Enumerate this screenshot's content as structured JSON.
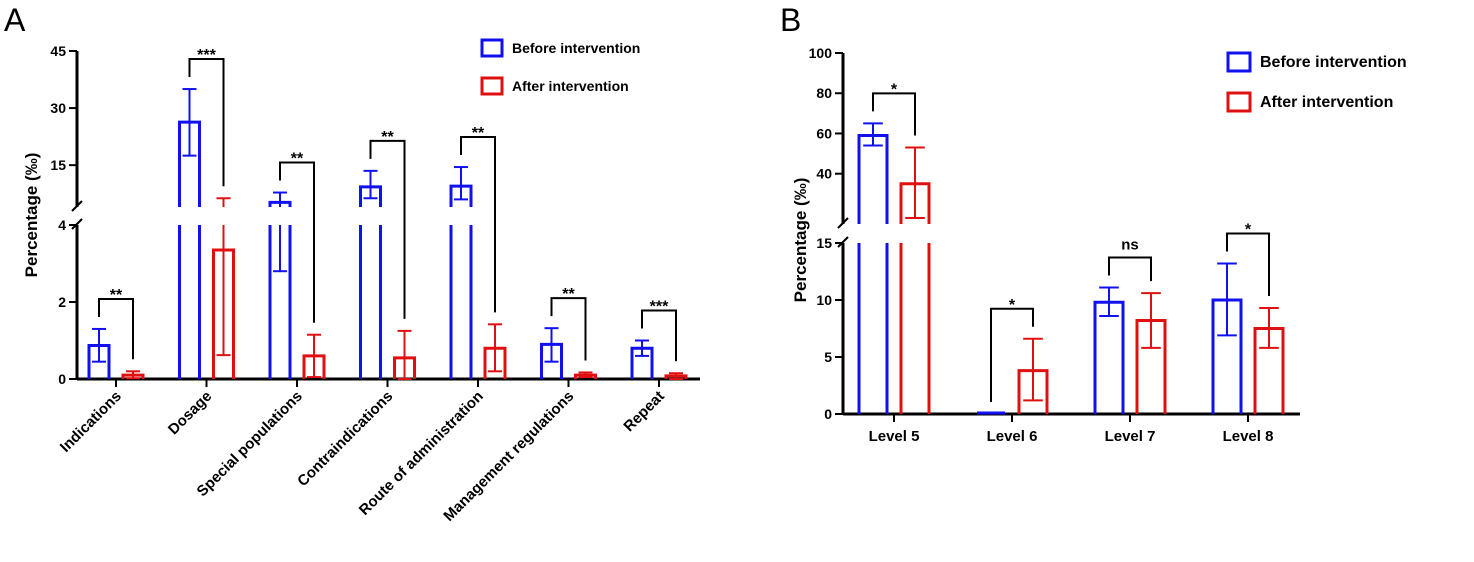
{
  "chart_data": [
    {
      "panel": "A",
      "type": "bar",
      "title": "",
      "xlabel": "",
      "ylabel": "Percentage (‰)",
      "y_break": [
        4,
        4
      ],
      "ylim_lower": [
        0,
        4
      ],
      "ylim_upper": [
        4,
        45
      ],
      "yticks": [
        0,
        2,
        4,
        15,
        30,
        45
      ],
      "categories": [
        "Indications",
        "Dosage",
        "Special populations",
        "Contraindications",
        "Route of administration",
        "Management regulations",
        "Repeat"
      ],
      "series": [
        {
          "name": "Before intervention",
          "color": "#1010f0",
          "values": [
            0.87,
            26.3,
            5.2,
            9.3,
            9.5,
            0.9,
            0.8
          ],
          "err_low": [
            0.45,
            17.5,
            2.8,
            6.3,
            6.0,
            0.45,
            0.6
          ],
          "err_high": [
            1.3,
            35.0,
            7.8,
            13.5,
            14.5,
            1.32,
            1.0
          ]
        },
        {
          "name": "After intervention",
          "color": "#e01010",
          "values": [
            0.1,
            3.35,
            0.6,
            0.55,
            0.8,
            0.1,
            0.08
          ],
          "err_low": [
            0.02,
            0.62,
            0.05,
            0.0,
            0.2,
            0.05,
            0.0
          ],
          "err_high": [
            0.2,
            6.3,
            1.15,
            1.25,
            1.42,
            0.17,
            0.15
          ]
        }
      ],
      "significance": [
        "**",
        "***",
        "**",
        "**",
        "**",
        "**",
        "***"
      ],
      "legend": "top-right"
    },
    {
      "panel": "B",
      "type": "bar",
      "title": "",
      "xlabel": "",
      "ylabel": "Percentage (‰)",
      "ylim_lower": [
        0,
        15
      ],
      "ylim_upper": [
        15,
        100
      ],
      "yticks": [
        0,
        5,
        10,
        15,
        40,
        60,
        80,
        100
      ],
      "categories": [
        "Level 5",
        "Level 6",
        "Level 7",
        "Level 8"
      ],
      "series": [
        {
          "name": "Before intervention",
          "color": "#1010f0",
          "values": [
            59,
            0,
            9.8,
            10.0
          ],
          "err_low": [
            54,
            0,
            8.6,
            6.9
          ],
          "err_high": [
            65,
            0,
            11.1,
            13.2
          ]
        },
        {
          "name": "After intervention",
          "color": "#e01010",
          "values": [
            35,
            3.8,
            8.2,
            7.5
          ],
          "err_low": [
            18,
            1.2,
            5.8,
            5.8
          ],
          "err_high": [
            53,
            6.6,
            10.6,
            9.3
          ]
        }
      ],
      "significance": [
        "*",
        "*",
        "ns",
        "*"
      ],
      "legend": "top-right"
    }
  ],
  "panels": {
    "a_letter": "A",
    "b_letter": "B"
  }
}
